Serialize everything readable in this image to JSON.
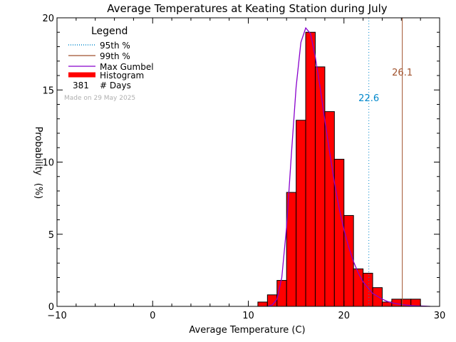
{
  "chart_data": {
    "type": "bar",
    "title": "Average Temperatures at Keating Station during July",
    "xlabel": "Average Temperature (C)",
    "ylabel": "Probability",
    "ylabel_unit": "(%)",
    "xlim": [
      -10,
      30
    ],
    "ylim": [
      0,
      20
    ],
    "x_ticks": [
      -10,
      0,
      10,
      20,
      30
    ],
    "y_ticks": [
      0,
      5,
      10,
      15,
      20
    ],
    "x_tick_labels": [
      "−10",
      "0",
      "10",
      "20",
      "30"
    ],
    "y_tick_labels": [
      "0",
      "5",
      "10",
      "15",
      "20"
    ],
    "grid": false,
    "legend_position": "top-left",
    "legend": {
      "title": "Legend",
      "items": [
        {
          "label": "95th %",
          "style": "dotted",
          "color": "#0088cc"
        },
        {
          "label": "99th %",
          "style": "solid",
          "color": "#a0522d"
        },
        {
          "label": "Max Gumbel",
          "style": "solid",
          "color": "#8800cc"
        },
        {
          "label": "Histogram",
          "style": "thick",
          "color": "#ff0000"
        }
      ],
      "days_count": "381",
      "days_label": "# Days"
    },
    "made_on": "Made on 29 May 2025",
    "histogram": {
      "bin_width": 1,
      "bins": [
        {
          "x0": 11,
          "value": 0.3
        },
        {
          "x0": 12,
          "value": 0.8
        },
        {
          "x0": 13,
          "value": 1.8
        },
        {
          "x0": 14,
          "value": 7.9
        },
        {
          "x0": 15,
          "value": 12.9
        },
        {
          "x0": 16,
          "value": 19.0
        },
        {
          "x0": 17,
          "value": 16.6
        },
        {
          "x0": 18,
          "value": 13.5
        },
        {
          "x0": 19,
          "value": 10.2
        },
        {
          "x0": 20,
          "value": 6.3
        },
        {
          "x0": 21,
          "value": 2.6
        },
        {
          "x0": 22,
          "value": 2.3
        },
        {
          "x0": 23,
          "value": 1.3
        },
        {
          "x0": 24,
          "value": 0.3
        },
        {
          "x0": 25,
          "value": 0.5
        },
        {
          "x0": 26,
          "value": 0.5
        },
        {
          "x0": 27,
          "value": 0.5
        }
      ]
    },
    "gumbel_curve": {
      "x": [
        12.0,
        12.5,
        13.0,
        13.5,
        14.0,
        14.5,
        15.0,
        15.5,
        16.0,
        16.5,
        17.0,
        17.5,
        18.0,
        18.5,
        19.0,
        19.5,
        20.0,
        20.5,
        21.0,
        21.5,
        22.0,
        22.5,
        23.0,
        23.5,
        24.0,
        24.5,
        25.0,
        25.5,
        26.0,
        26.5,
        27.0,
        27.5,
        28.0,
        28.5,
        29.0
      ],
      "y": [
        0.0,
        0.1,
        0.5,
        2.0,
        5.5,
        10.5,
        15.2,
        18.3,
        19.3,
        18.9,
        17.3,
        15.2,
        12.9,
        10.7,
        8.6,
        6.8,
        5.3,
        4.1,
        3.1,
        2.3,
        1.7,
        1.3,
        0.9,
        0.7,
        0.5,
        0.35,
        0.25,
        0.18,
        0.13,
        0.09,
        0.06,
        0.04,
        0.03,
        0.02,
        0.0
      ]
    },
    "percentiles": [
      {
        "name": "95th %",
        "value": 22.6,
        "label": "22.6",
        "color": "#0088cc",
        "style": "dotted"
      },
      {
        "name": "99th %",
        "value": 26.1,
        "label": "26.1",
        "color": "#a0522d",
        "style": "solid"
      }
    ]
  },
  "colors": {
    "histogram_fill": "#ff0000",
    "histogram_edge": "#000000",
    "gumbel": "#8800cc",
    "p95": "#0088cc",
    "p99": "#a0522d",
    "made_on": "#b0b0b0"
  }
}
